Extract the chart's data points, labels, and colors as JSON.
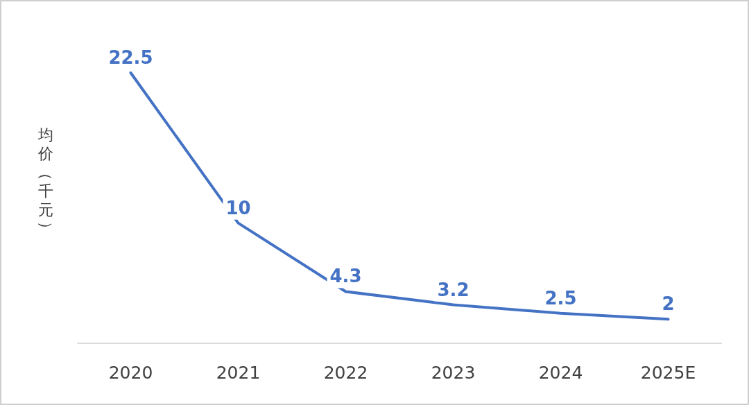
{
  "chart_data": {
    "type": "line",
    "ylabel": "均价（千元）",
    "categories": [
      "2020",
      "2021",
      "2022",
      "2023",
      "2024",
      "2025E"
    ],
    "values": [
      22.5,
      10,
      4.3,
      3.2,
      2.5,
      2
    ],
    "color": "#4472c4",
    "data_labels": true
  }
}
